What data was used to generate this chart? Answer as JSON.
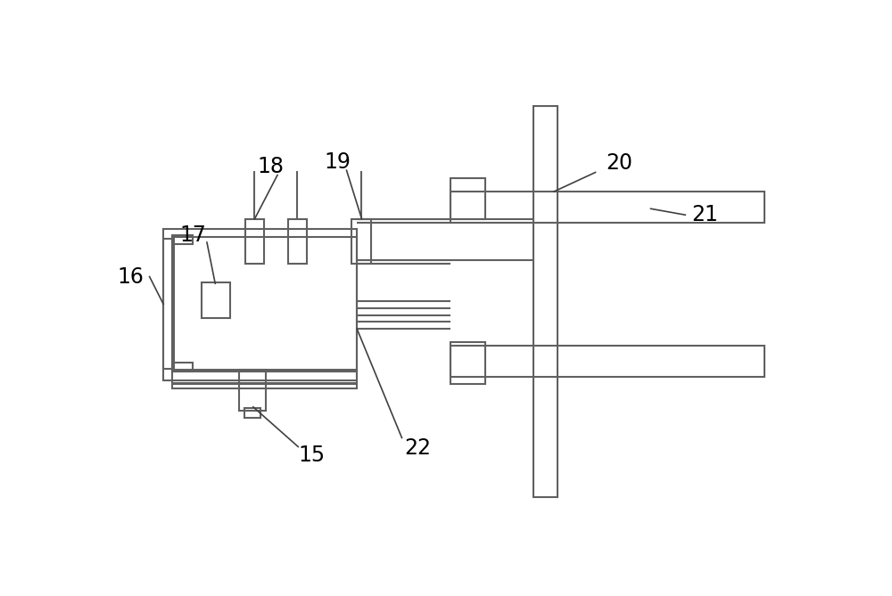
{
  "bg_color": "#ffffff",
  "line_color": "#606060",
  "lw": 1.5,
  "label_fontsize": 17
}
